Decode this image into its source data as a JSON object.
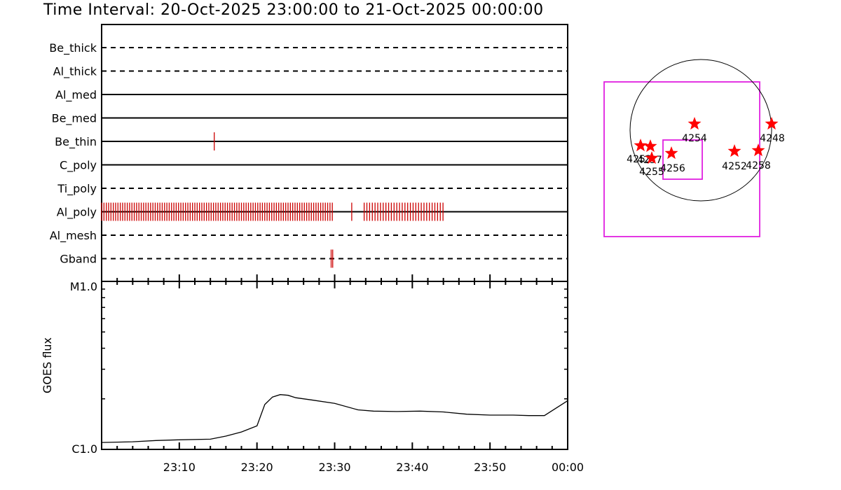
{
  "title": "Time Interval: 20-Oct-2025 23:00:00 to 21-Oct-2025 00:00:00",
  "colors": {
    "axis": "#000000",
    "event": "#cc0000",
    "star": "#ff0000",
    "box": "#e020e0"
  },
  "chart_data": [
    {
      "type": "timeline",
      "x_range": [
        "23:00",
        "24:00"
      ],
      "rows": [
        {
          "label": "Be_thick",
          "style": "dashed",
          "events": []
        },
        {
          "label": "Al_thick",
          "style": "dashed",
          "events": []
        },
        {
          "label": "Al_med",
          "style": "solid",
          "events": []
        },
        {
          "label": "Be_med",
          "style": "solid",
          "events": []
        },
        {
          "label": "Be_thin",
          "style": "solid",
          "events": [
            14.5
          ]
        },
        {
          "label": "C_poly",
          "style": "solid",
          "events": []
        },
        {
          "label": "Ti_poly",
          "style": "dashed",
          "events": []
        },
        {
          "label": "Al_poly",
          "style": "solid",
          "event_spans": [
            {
              "start": 0.0,
              "end": 29.8,
              "step": 0.3
            },
            {
              "start": 32.2,
              "end": 32.2,
              "step": 1
            },
            {
              "start": 33.8,
              "end": 44.2,
              "step": 0.35
            }
          ]
        },
        {
          "label": "Al_mesh",
          "style": "dashed",
          "events": []
        },
        {
          "label": "Gband",
          "style": "dashed",
          "events": [
            29.55,
            29.75
          ]
        }
      ]
    },
    {
      "type": "line",
      "ylabel": "GOES flux",
      "ytick_labels": [
        "M1.0",
        "C1.0"
      ],
      "ylim": [
        1.0,
        10.0
      ],
      "x_ticks": [
        "23:10",
        "23:20",
        "23:30",
        "23:40",
        "23:50",
        "00:00"
      ],
      "x_minutes": [
        0,
        4,
        7,
        10,
        14,
        16,
        18,
        20,
        21,
        22,
        23,
        24,
        25,
        27,
        30,
        33,
        35,
        38,
        41,
        44,
        47,
        50,
        53,
        55,
        57,
        60
      ],
      "y_flux": [
        1.1,
        1.11,
        1.13,
        1.14,
        1.15,
        1.2,
        1.27,
        1.38,
        1.85,
        2.05,
        2.12,
        2.1,
        2.03,
        1.97,
        1.88,
        1.72,
        1.69,
        1.68,
        1.69,
        1.67,
        1.62,
        1.6,
        1.6,
        1.59,
        1.59,
        1.95
      ]
    }
  ],
  "sun_map": {
    "regions": [
      {
        "label": "4254"
      },
      {
        "label": "4248"
      },
      {
        "label": "4256"
      },
      {
        "label": "4252"
      },
      {
        "label": "4258"
      },
      {
        "label": "4253"
      },
      {
        "label": "4257"
      },
      {
        "label": "4255"
      }
    ]
  }
}
